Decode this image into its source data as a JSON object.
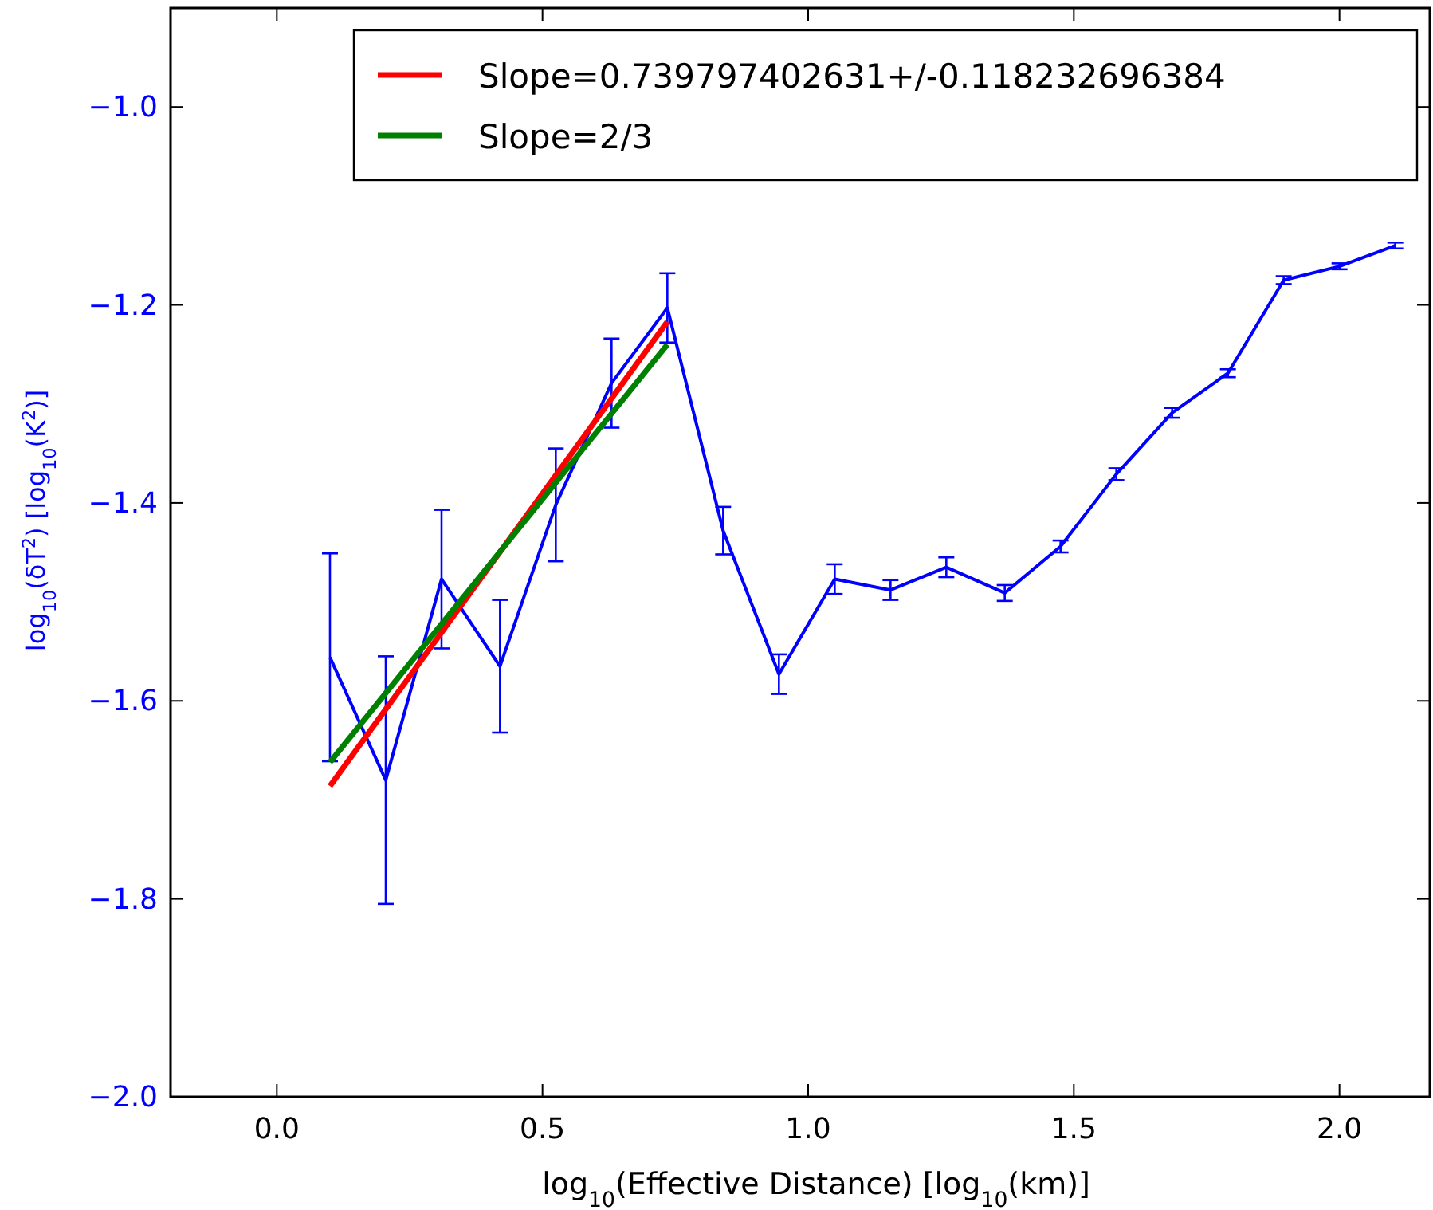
{
  "chart_data": {
    "type": "line",
    "xlabel": "log$_{10}$(Effective Distance)   [log$_{10}$(km)]",
    "ylabel": "log$_{10}$(δT$^{2}$)   [log$_{10}$(K$^{2}$)]",
    "xlim": [
      -0.2,
      2.17
    ],
    "ylim": [
      -2.0,
      -0.9
    ],
    "xticks": [
      {
        "value": 0,
        "label": "0.0"
      },
      {
        "value": 0.5,
        "label": "0.5"
      },
      {
        "value": 1,
        "label": "1.0"
      },
      {
        "value": 1.5,
        "label": "1.5"
      },
      {
        "value": 2,
        "label": "2.0"
      }
    ],
    "yticks": [
      {
        "value": -2,
        "label": "−2.0"
      },
      {
        "value": -1.8,
        "label": "−1.8"
      },
      {
        "value": -1.6,
        "label": "−1.6"
      },
      {
        "value": -1.4,
        "label": "−1.4"
      },
      {
        "value": -1.2,
        "label": "−1.2"
      },
      {
        "value": -1,
        "label": "−1.0"
      }
    ],
    "grid": false,
    "legend": "top right",
    "marker": "none",
    "line_style": "solid",
    "series": [
      {
        "color": "#0000ff",
        "x": [
          0.1,
          0.205,
          0.31,
          0.42,
          0.525,
          0.63,
          0.735,
          0.84,
          0.945,
          1.05,
          1.155,
          1.26,
          1.37,
          1.475,
          1.58,
          1.685,
          1.79,
          1.895,
          2.0,
          2.105
        ],
        "values": [
          -1.556,
          -1.68,
          -1.477,
          -1.565,
          -1.402,
          -1.279,
          -1.203,
          -1.428,
          -1.573,
          -1.477,
          -1.488,
          -1.465,
          -1.491,
          -1.444,
          -1.371,
          -1.309,
          -1.269,
          -1.175,
          -1.161,
          -1.14
        ],
        "errors": [
          0.105,
          0.125,
          0.07,
          0.067,
          0.057,
          0.045,
          0.035,
          0.024,
          0.02,
          0.015,
          0.01,
          0.01,
          0.008,
          0.006,
          0.006,
          0.005,
          0.004,
          0.004,
          0.003,
          0.003
        ]
      },
      {
        "name": "Slope=0.739797402631+/-0.118232696384",
        "color": "#ff0000",
        "x": [
          0.1,
          0.735
        ],
        "values": [
          -1.686,
          -1.217
        ]
      },
      {
        "name": "Slope=2/3",
        "color": "#008000",
        "x": [
          0.1,
          0.735
        ],
        "values": [
          -1.662,
          -1.24
        ]
      }
    ]
  }
}
